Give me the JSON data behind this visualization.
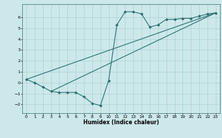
{
  "xlabel": "Humidex (Indice chaleur)",
  "ylabel": "",
  "bg_color": "#cde8ea",
  "grid_color": "#b0d4d6",
  "line_color": "#2a7070",
  "xlim": [
    -0.5,
    23.5
  ],
  "ylim": [
    -2.8,
    7.2
  ],
  "xticks": [
    0,
    1,
    2,
    3,
    4,
    5,
    6,
    7,
    8,
    9,
    10,
    11,
    12,
    13,
    14,
    15,
    16,
    17,
    18,
    19,
    20,
    21,
    22,
    23
  ],
  "yticks": [
    -2,
    -1,
    0,
    1,
    2,
    3,
    4,
    5,
    6
  ],
  "line1_x": [
    0,
    1,
    2,
    3,
    4,
    5,
    6,
    7,
    8,
    9,
    10,
    11,
    12,
    13,
    14,
    15,
    16,
    17,
    18,
    19,
    20,
    21,
    22,
    23
  ],
  "line1_y": [
    0.3,
    0.0,
    -0.4,
    -0.8,
    -0.9,
    -0.9,
    -0.9,
    -1.3,
    -1.9,
    -2.1,
    0.2,
    5.3,
    6.5,
    6.5,
    6.3,
    5.1,
    5.3,
    5.8,
    5.8,
    5.9,
    5.9,
    6.1,
    6.3,
    6.4
  ],
  "line2_x": [
    0,
    23
  ],
  "line2_y": [
    0.3,
    6.4
  ],
  "line3_x": [
    3,
    23
  ],
  "line3_y": [
    -0.8,
    6.4
  ]
}
